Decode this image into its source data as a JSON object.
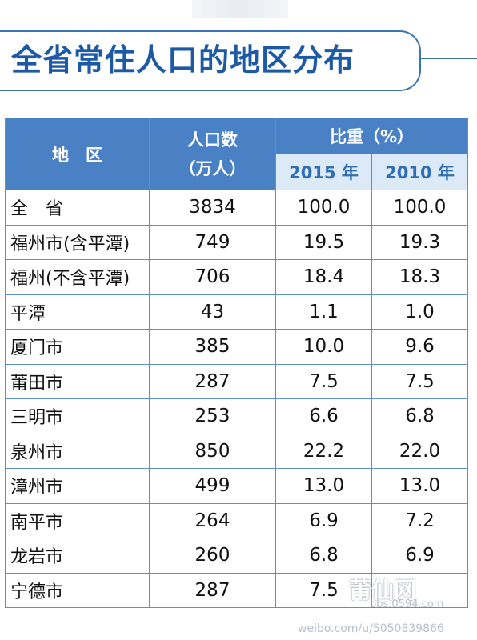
{
  "title": "全省常住人口的地区分布",
  "table": {
    "headers": {
      "region": "地　区",
      "population_line1": "人口数",
      "population_line2": "（万人）",
      "ratio": "比重（%）",
      "year1": "2015 年",
      "year2": "2010 年"
    },
    "rows": [
      {
        "region": "全　省",
        "population": "3834",
        "y2015": "100.0",
        "y2010": "100.0"
      },
      {
        "region": "福州市(含平潭)",
        "population": "749",
        "y2015": "19.5",
        "y2010": "19.3"
      },
      {
        "region": "福州(不含平潭)",
        "population": "706",
        "y2015": "18.4",
        "y2010": "18.3"
      },
      {
        "region": "平潭",
        "population": "43",
        "y2015": "1.1",
        "y2010": "1.0"
      },
      {
        "region": "厦门市",
        "population": "385",
        "y2015": "10.0",
        "y2010": "9.6"
      },
      {
        "region": "莆田市",
        "population": "287",
        "y2015": "7.5",
        "y2010": "7.5"
      },
      {
        "region": "三明市",
        "population": "253",
        "y2015": "6.6",
        "y2010": "6.8"
      },
      {
        "region": "泉州市",
        "population": "850",
        "y2015": "22.2",
        "y2010": "22.0"
      },
      {
        "region": "漳州市",
        "population": "499",
        "y2015": "13.0",
        "y2010": "13.0"
      },
      {
        "region": "南平市",
        "population": "264",
        "y2015": "6.9",
        "y2010": "7.2"
      },
      {
        "region": "龙岩市",
        "population": "260",
        "y2015": "6.8",
        "y2010": "6.9"
      },
      {
        "region": "宁德市",
        "population": "287",
        "y2015": "7.5",
        "y2010": ""
      }
    ]
  },
  "watermark": {
    "logo": "莆仙网",
    "site": "bbs.0594.com",
    "weibo": "weibo.com/u/5050839866"
  },
  "colors": {
    "header_bg": "#4a80c4",
    "subheader_bg": "#dce9f7",
    "title": "#1d5aa6",
    "border": "#5b8fce"
  }
}
